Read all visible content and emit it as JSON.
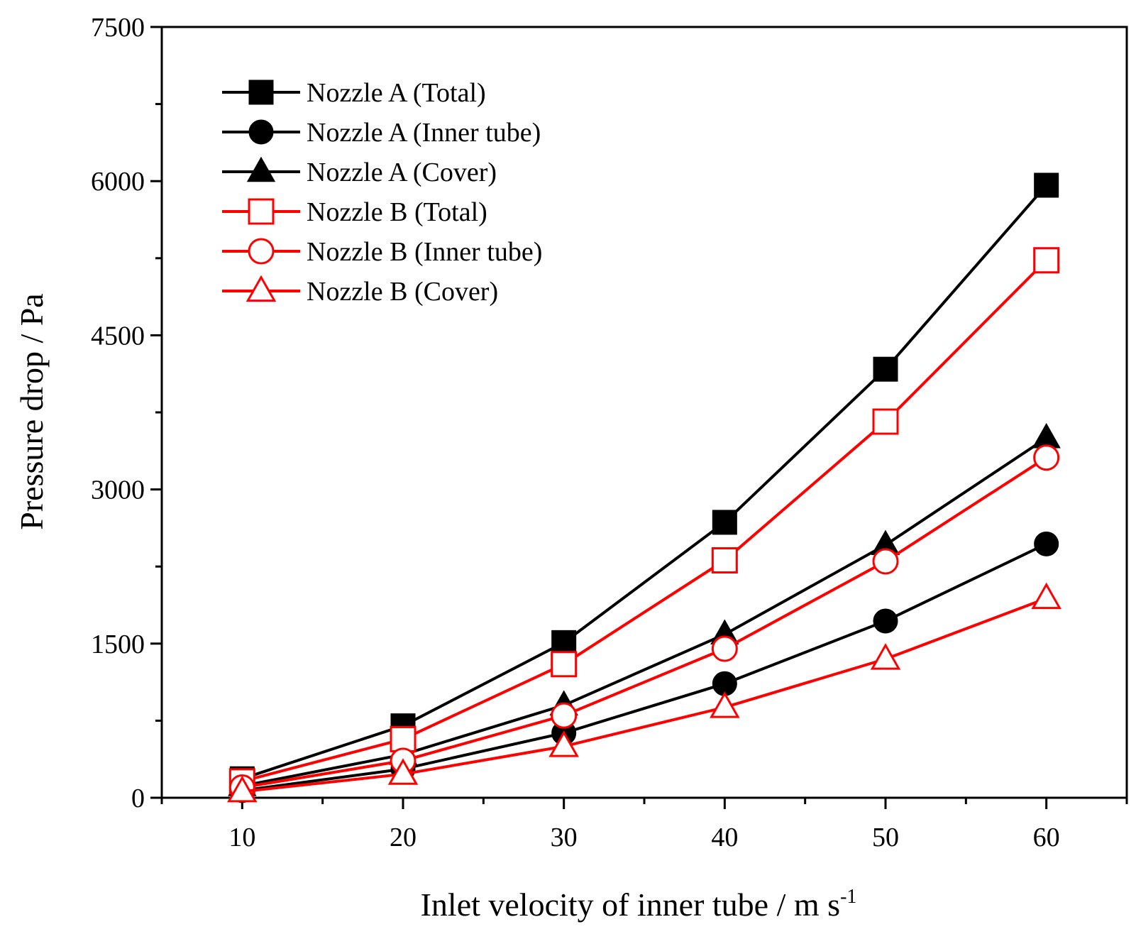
{
  "chart_data": {
    "type": "line",
    "title": "",
    "xlabel": "Inlet velocity of inner tube / m s",
    "xlabel_superscript": "-1",
    "ylabel": "Pressure drop / Pa",
    "x": [
      10,
      20,
      30,
      40,
      50,
      60
    ],
    "xlim": [
      5,
      65
    ],
    "ylim": [
      0,
      7500
    ],
    "xticks": [
      "10",
      "20",
      "30",
      "40",
      "50",
      "60"
    ],
    "yticks": [
      "0",
      "1500",
      "3000",
      "4500",
      "6000",
      "7500"
    ],
    "grid": false,
    "legend_position": "top-left",
    "series": [
      {
        "name": "Nozzle A (Total)",
        "color": "#000000",
        "marker": "square",
        "filled": true,
        "values": [
          185,
          700,
          1510,
          2680,
          4170,
          5960
        ]
      },
      {
        "name": "Nozzle A (Inner tube)",
        "color": "#000000",
        "marker": "circle",
        "filled": true,
        "values": [
          70,
          280,
          630,
          1110,
          1720,
          2470
        ]
      },
      {
        "name": "Nozzle A (Cover)",
        "color": "#000000",
        "marker": "triangle",
        "filled": true,
        "values": [
          115,
          420,
          900,
          1590,
          2460,
          3500
        ]
      },
      {
        "name": "Nozzle B (Total)",
        "color": "#ff0000",
        "marker": "square",
        "filled": false,
        "values": [
          160,
          570,
          1300,
          2310,
          3660,
          5230
        ]
      },
      {
        "name": "Nozzle B (Inner tube)",
        "color": "#ff0000",
        "marker": "circle",
        "filled": false,
        "values": [
          100,
          360,
          800,
          1450,
          2300,
          3310
        ]
      },
      {
        "name": "Nozzle B (Cover)",
        "color": "#ff0000",
        "marker": "triangle",
        "filled": false,
        "values": [
          60,
          230,
          500,
          880,
          1350,
          1940
        ]
      }
    ]
  }
}
